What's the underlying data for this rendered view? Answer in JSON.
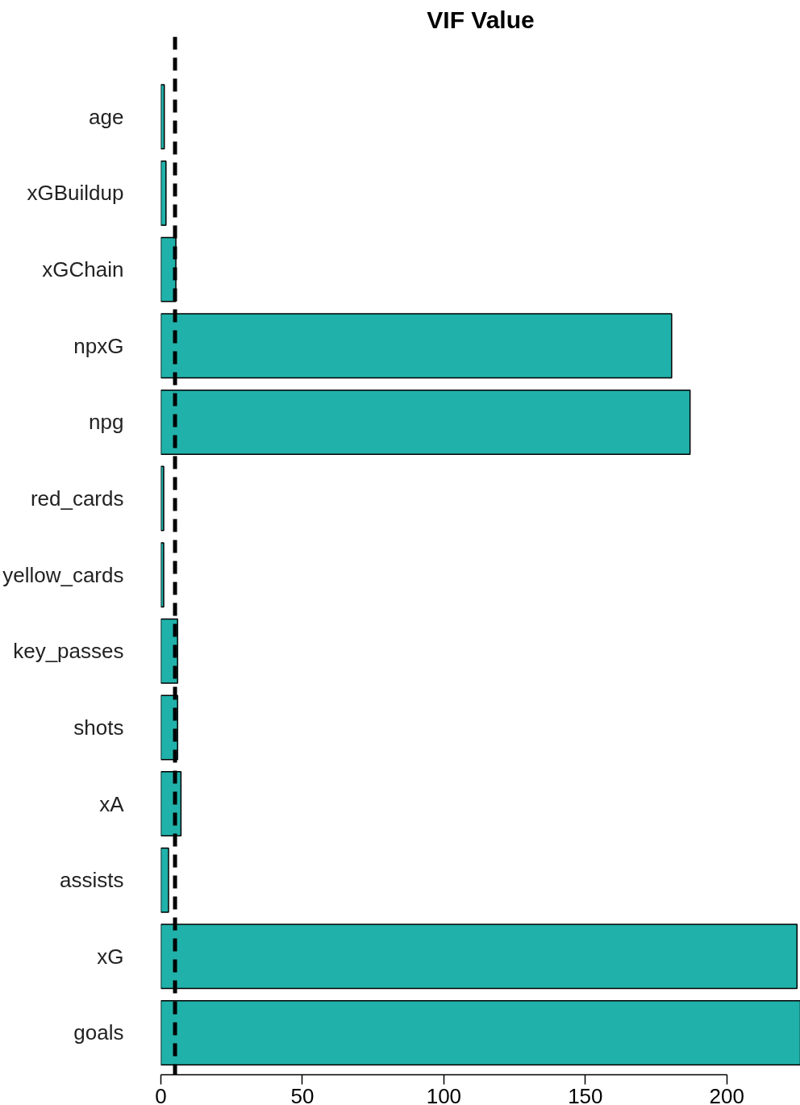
{
  "chart_data": {
    "type": "bar",
    "orientation": "horizontal",
    "title": "VIF Value",
    "categories": [
      "age",
      "xGBuildup",
      "xGChain",
      "npxG",
      "npg",
      "red_cards",
      "yellow_cards",
      "key_passes",
      "shots",
      "xA",
      "assists",
      "xG",
      "goals"
    ],
    "values": [
      1.2,
      1.8,
      5.3,
      180.5,
      187,
      1,
      1,
      5.9,
      5.9,
      7.1,
      2.7,
      224.8,
      226
    ],
    "color": "#20b2aa",
    "xlim": [
      0,
      226
    ],
    "xticks": [
      0,
      50,
      100,
      150,
      200
    ],
    "ref_lines": [
      {
        "axis": "x",
        "value": 5,
        "color": "#000000",
        "line_style": "dashed"
      }
    ],
    "grid": false
  }
}
